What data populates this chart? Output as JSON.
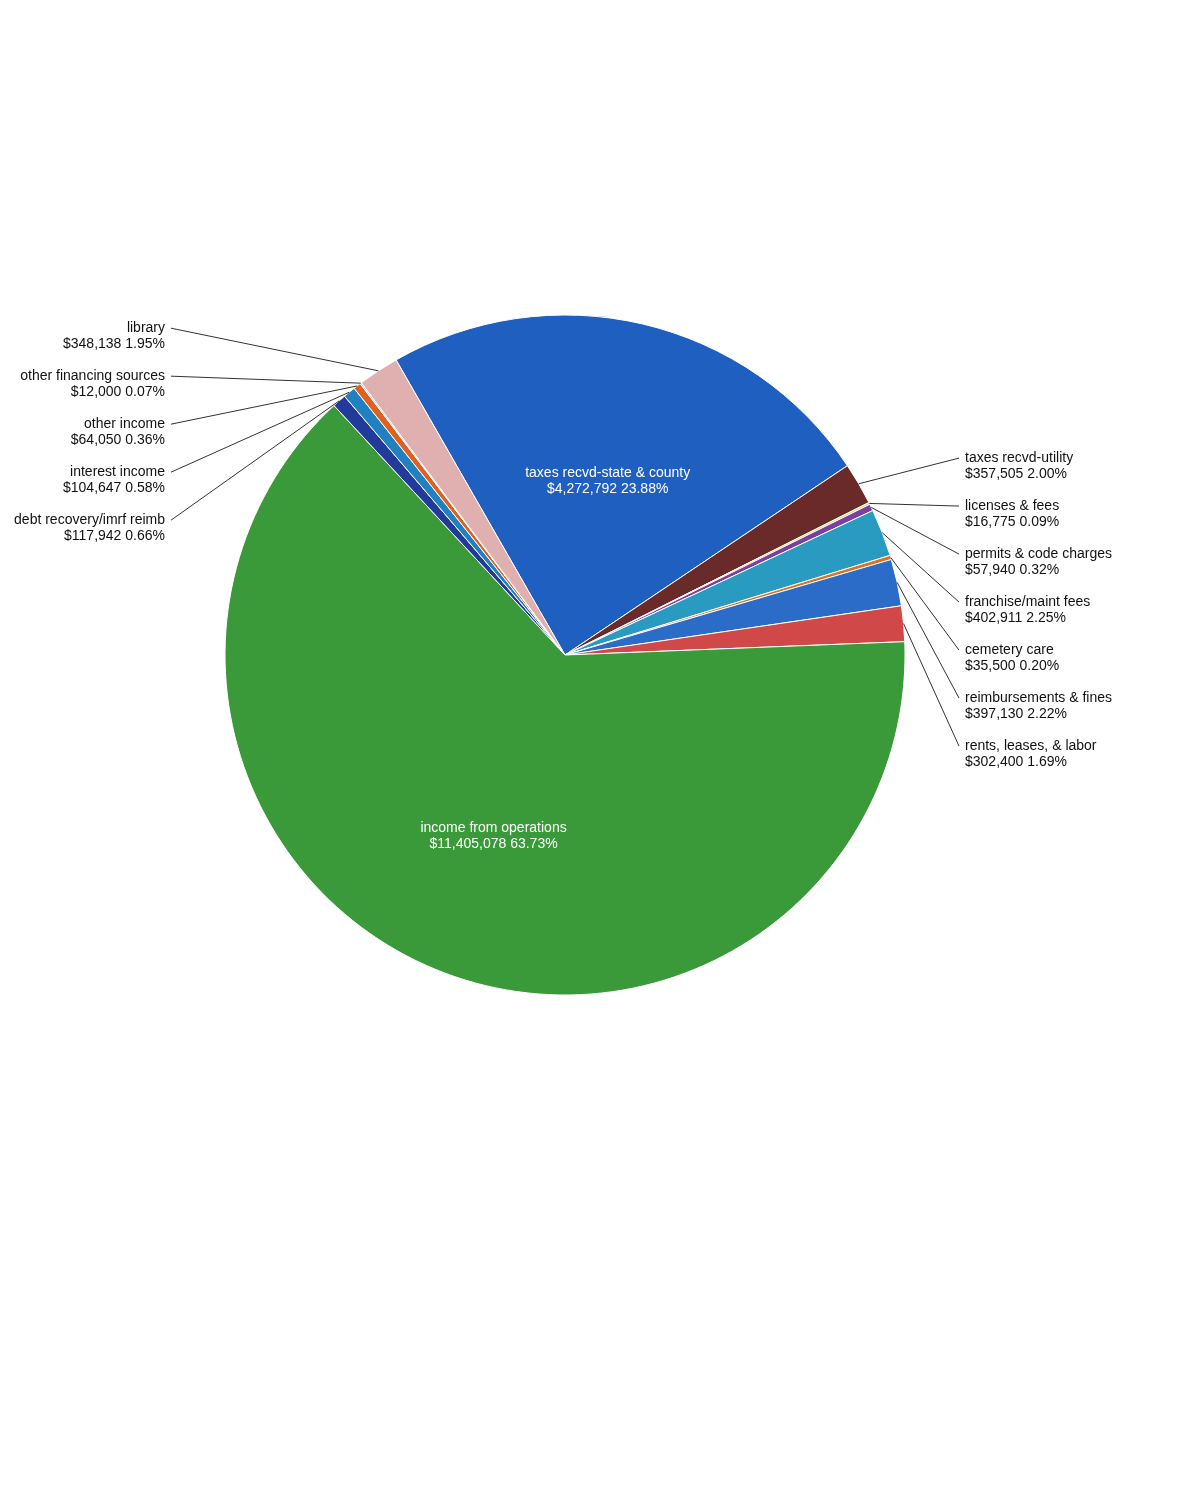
{
  "chart_data": {
    "type": "pie",
    "categories": [
      "taxes recvd-state & county",
      "taxes recvd-utility",
      "licenses & fees",
      "permits & code charges",
      "franchise/maint fees",
      "cemetery care",
      "reimbursements & fines",
      "rents, leases, & labor",
      "income from operations",
      "debt recovery/imrf reimb",
      "interest income",
      "other income",
      "other financing sources",
      "library"
    ],
    "values": [
      4272792,
      357505,
      16775,
      57940,
      402911,
      35500,
      397130,
      302400,
      11405078,
      117942,
      104647,
      64050,
      12000,
      348138
    ],
    "value_labels": [
      "$4,272,792 23.88%",
      "$357,505 2.00%",
      "$16,775 0.09%",
      "$57,940 0.32%",
      "$402,911 2.25%",
      "$35,500 0.20%",
      "$397,130 2.22%",
      "$302,400 1.69%",
      "$11,405,078 63.73%",
      "$117,942 0.66%",
      "$104,647 0.58%",
      "$64,050 0.36%",
      "$12,000 0.07%",
      "$348,138 1.95%"
    ],
    "colors": [
      "#1f5fbf",
      "#6b2a2a",
      "#e8d44d",
      "#7a3fa0",
      "#2a9bc0",
      "#e07020",
      "#2a6cc8",
      "#d04848",
      "#3a9a3a",
      "#223a99",
      "#2080c0",
      "#e06020",
      "#a0c8e0",
      "#e0b0b0"
    ]
  }
}
